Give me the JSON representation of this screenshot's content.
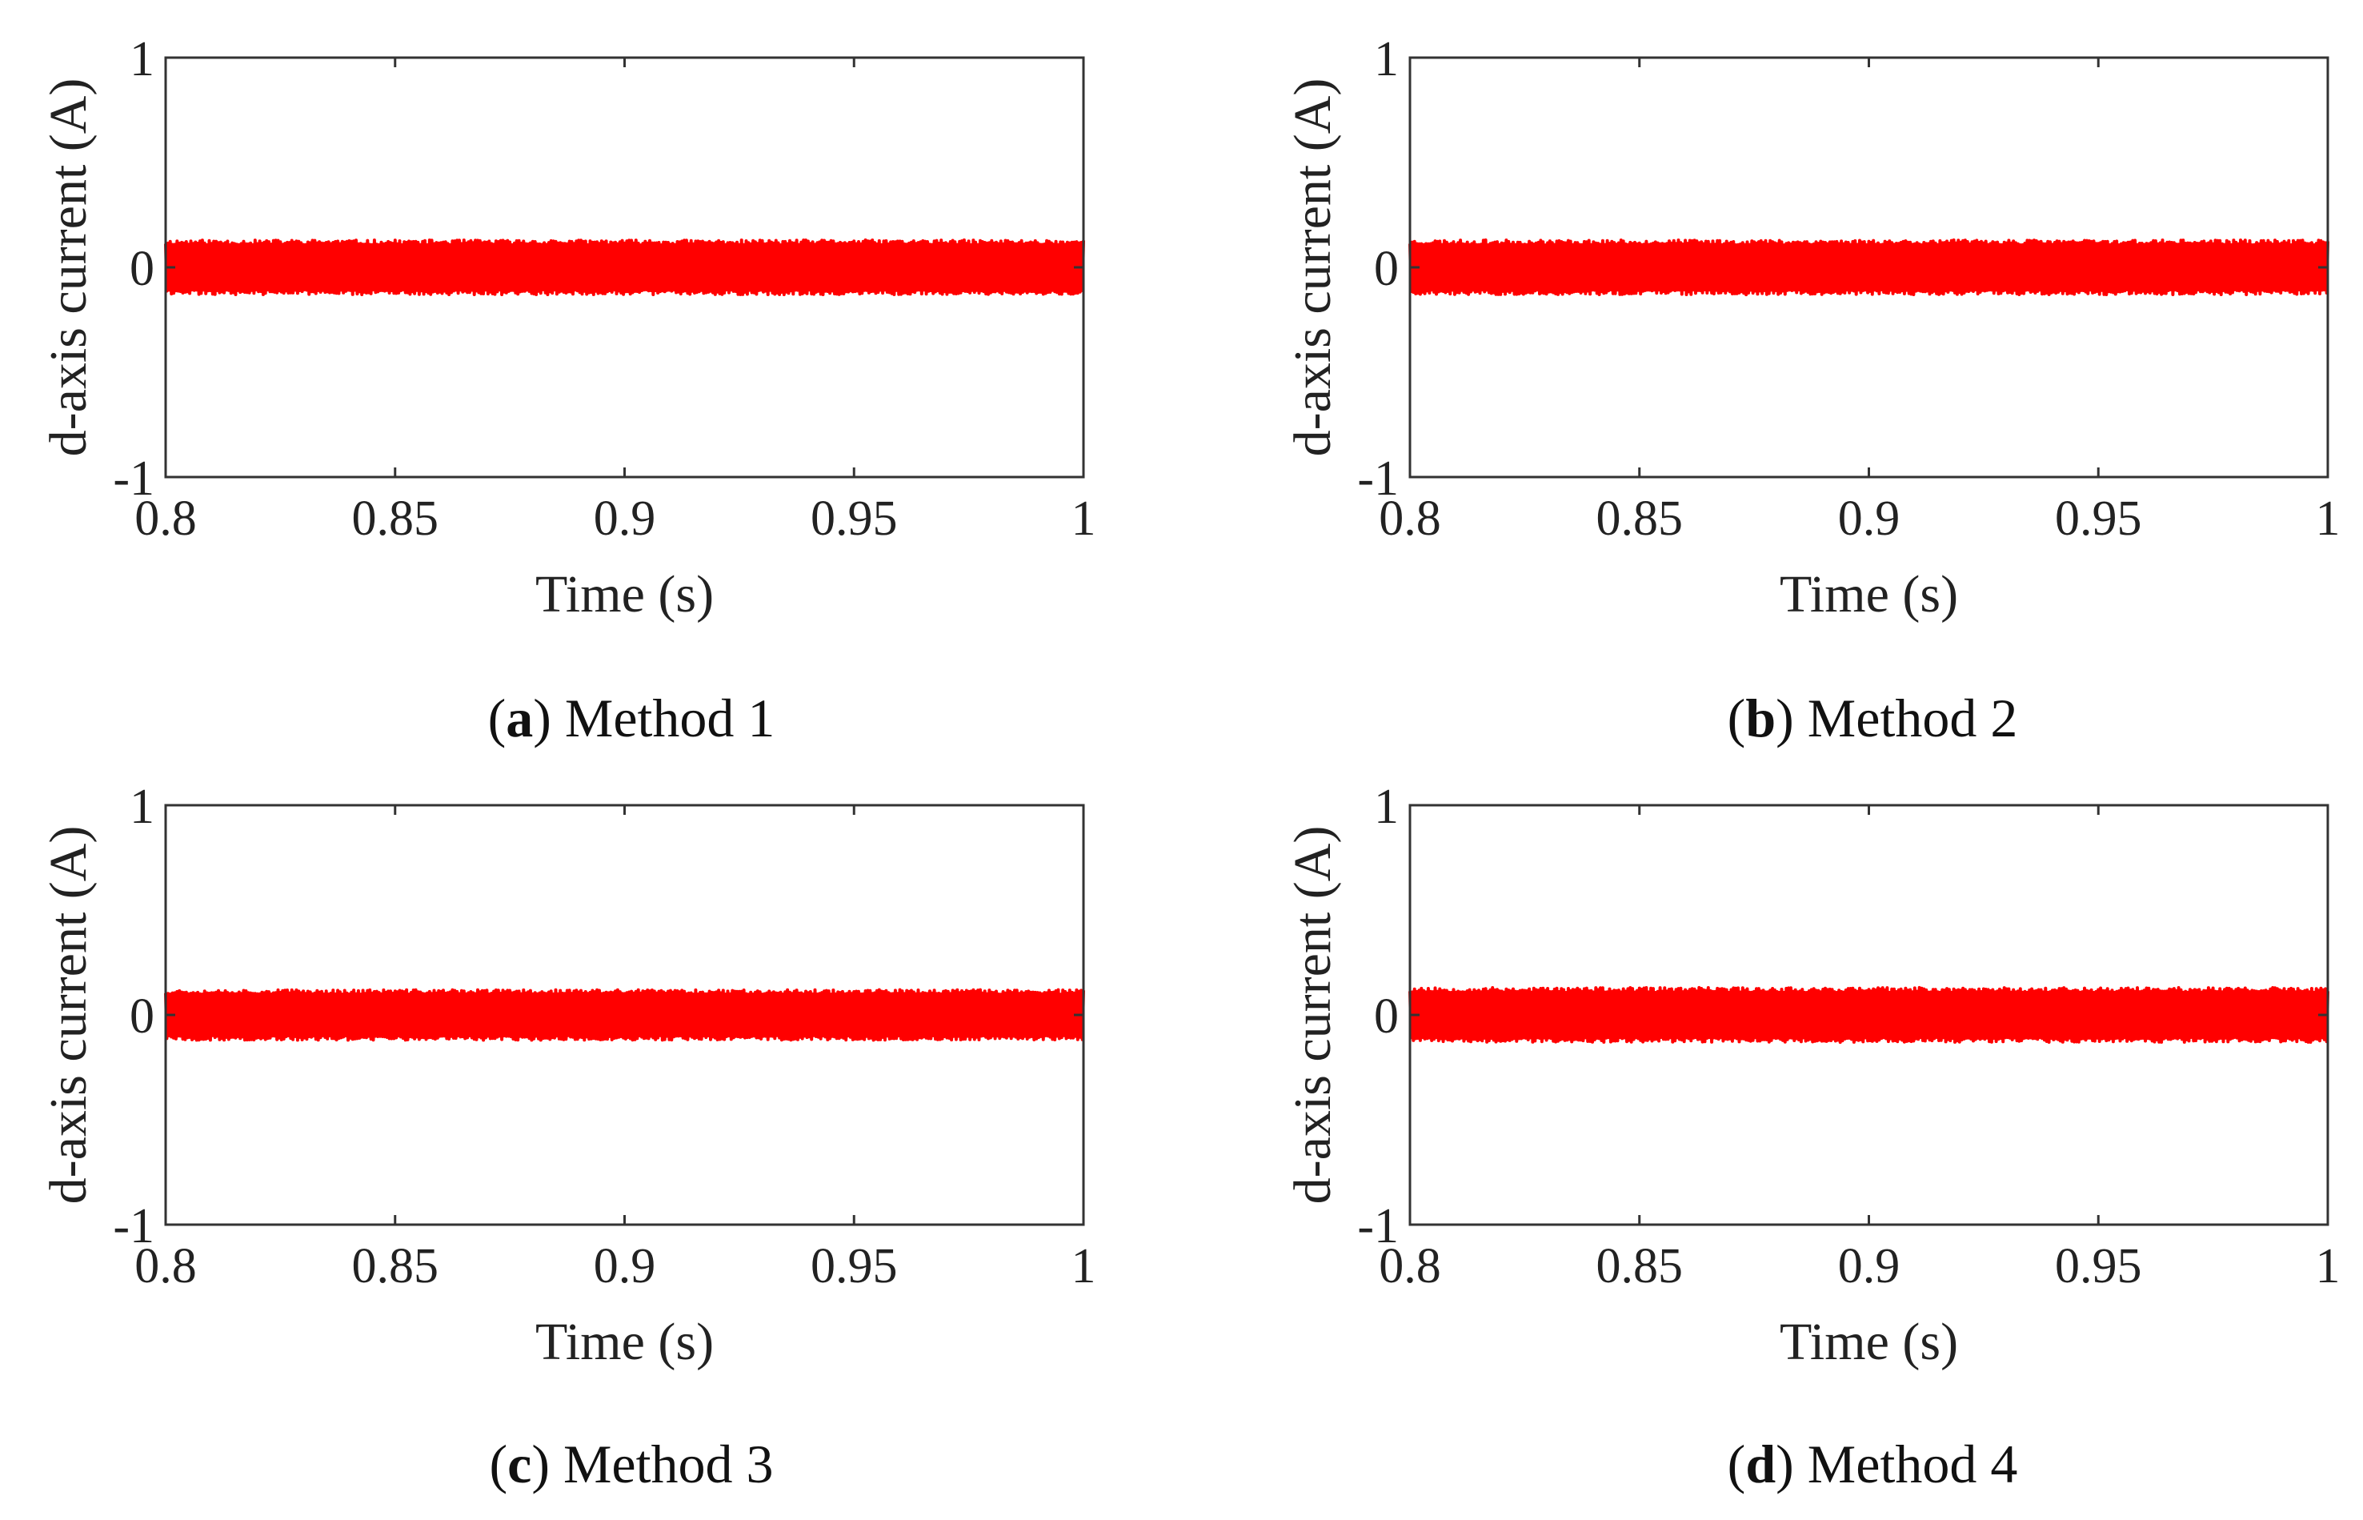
{
  "figure": {
    "panels": [
      {
        "letter": "a",
        "caption": "Method 1"
      },
      {
        "letter": "b",
        "caption": "Method 2"
      },
      {
        "letter": "c",
        "caption": "Method 3"
      },
      {
        "letter": "d",
        "caption": "Method 4"
      }
    ]
  },
  "chart_data": [
    {
      "type": "line",
      "xlabel": "Time (s)",
      "ylabel": "d-axis current (A)",
      "xlim": [
        0.8,
        1.0
      ],
      "ylim": [
        -1,
        1
      ],
      "xticks": [
        0.8,
        0.85,
        0.9,
        0.95,
        1
      ],
      "xtick_labels": [
        "0.8",
        "0.85",
        "0.9",
        "0.95",
        "1"
      ],
      "yticks": [
        1,
        0,
        -1
      ],
      "ytick_labels": [
        "1",
        "0",
        "-1"
      ],
      "grid": false,
      "series": [
        {
          "name": "d-axis current",
          "color": "#ff0000",
          "description": "high-frequency ripple around 0",
          "center": 0.0,
          "amplitude": 0.13,
          "peak_min": -0.17,
          "peak_max": 0.17,
          "ripple_frequency_hz": 2000,
          "seed": 11
        }
      ]
    },
    {
      "type": "line",
      "xlabel": "Time (s)",
      "ylabel": "d-axis current (A)",
      "xlim": [
        0.8,
        1.0
      ],
      "ylim": [
        -1,
        1
      ],
      "xticks": [
        0.8,
        0.85,
        0.9,
        0.95,
        1
      ],
      "xtick_labels": [
        "0.8",
        "0.85",
        "0.9",
        "0.95",
        "1"
      ],
      "yticks": [
        1,
        0,
        -1
      ],
      "ytick_labels": [
        "1",
        "0",
        "-1"
      ],
      "grid": false,
      "series": [
        {
          "name": "d-axis current",
          "color": "#ff0000",
          "description": "high-frequency ripple around 0",
          "center": 0.0,
          "amplitude": 0.13,
          "peak_min": -0.17,
          "peak_max": 0.17,
          "ripple_frequency_hz": 2000,
          "seed": 23
        }
      ]
    },
    {
      "type": "line",
      "xlabel": "Time (s)",
      "ylabel": "d-axis current (A)",
      "xlim": [
        0.8,
        1.0
      ],
      "ylim": [
        -1,
        1
      ],
      "xticks": [
        0.8,
        0.85,
        0.9,
        0.95,
        1
      ],
      "xtick_labels": [
        "0.8",
        "0.85",
        "0.9",
        "0.95",
        "1"
      ],
      "yticks": [
        1,
        0,
        -1
      ],
      "ytick_labels": [
        "1",
        "0",
        "-1"
      ],
      "grid": false,
      "series": [
        {
          "name": "d-axis current",
          "color": "#ff0000",
          "description": "high-frequency ripple around 0",
          "center": 0.0,
          "amplitude": 0.12,
          "peak_min": -0.15,
          "peak_max": 0.15,
          "ripple_frequency_hz": 2000,
          "seed": 37
        }
      ]
    },
    {
      "type": "line",
      "xlabel": "Time (s)",
      "ylabel": "d-axis current (A)",
      "xlim": [
        0.8,
        1.0
      ],
      "ylim": [
        -1,
        1
      ],
      "xticks": [
        0.8,
        0.85,
        0.9,
        0.95,
        1
      ],
      "xtick_labels": [
        "0.8",
        "0.85",
        "0.9",
        "0.95",
        "1"
      ],
      "yticks": [
        1,
        0,
        -1
      ],
      "ytick_labels": [
        "1",
        "0",
        "-1"
      ],
      "grid": false,
      "series": [
        {
          "name": "d-axis current",
          "color": "#ff0000",
          "description": "high-frequency ripple around 0",
          "center": 0.0,
          "amplitude": 0.13,
          "peak_min": -0.17,
          "peak_max": 0.17,
          "ripple_frequency_hz": 2000,
          "seed": 53
        }
      ]
    }
  ]
}
